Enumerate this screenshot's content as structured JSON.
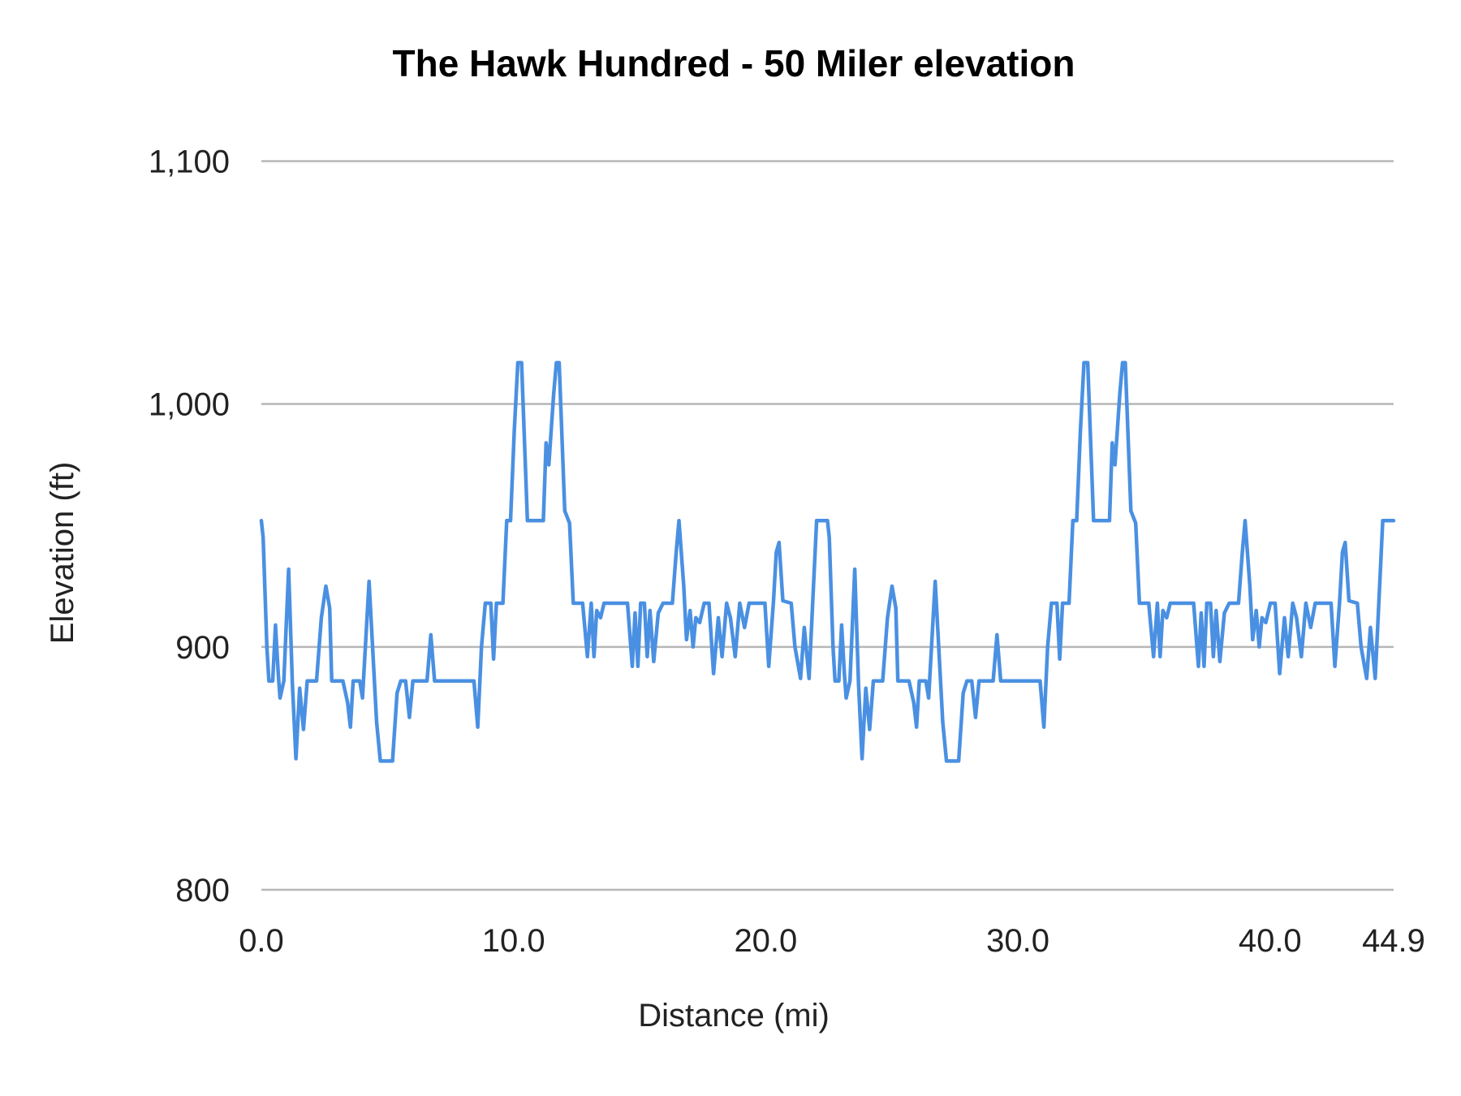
{
  "chart_data": {
    "type": "line",
    "title": "The Hawk Hundred - 50 Miler elevation",
    "xlabel": "Distance (mi)",
    "ylabel": "Elevation (ft)",
    "xlim": [
      0,
      44.9
    ],
    "ylim": [
      800,
      1100
    ],
    "x_ticks": [
      0,
      10,
      20,
      30,
      40,
      44.9
    ],
    "x_tick_labels": [
      "0.0",
      "10.0",
      "20.0",
      "30.0",
      "40.0",
      "44.9"
    ],
    "y_ticks": [
      800,
      900,
      1000,
      1100
    ],
    "y_tick_labels": [
      "800",
      "900",
      "1,000",
      "1,100"
    ],
    "grid": "horizontal",
    "legend": "none",
    "color": "#4a90e2",
    "series": [
      {
        "points": [
          [
            0,
            952
          ],
          [
            0.07,
            945
          ],
          [
            0.22,
            900
          ],
          [
            0.3,
            886
          ],
          [
            0.45,
            886
          ],
          [
            0.56,
            909
          ],
          [
            0.67,
            889
          ],
          [
            0.74,
            879
          ],
          [
            0.89,
            886
          ],
          [
            1.08,
            932
          ],
          [
            1.23,
            885
          ],
          [
            1.37,
            854
          ],
          [
            1.52,
            883
          ],
          [
            1.67,
            866
          ],
          [
            1.82,
            886
          ],
          [
            2.19,
            886
          ],
          [
            2.38,
            912
          ],
          [
            2.56,
            925
          ],
          [
            2.71,
            916
          ],
          [
            2.79,
            886
          ],
          [
            3.23,
            886
          ],
          [
            3.42,
            877
          ],
          [
            3.53,
            867
          ],
          [
            3.64,
            886
          ],
          [
            3.9,
            886
          ],
          [
            4.01,
            879
          ],
          [
            4.27,
            927
          ],
          [
            4.57,
            869
          ],
          [
            4.72,
            853
          ],
          [
            5.2,
            853
          ],
          [
            5.38,
            881
          ],
          [
            5.53,
            886
          ],
          [
            5.72,
            886
          ],
          [
            5.87,
            871
          ],
          [
            6.01,
            886
          ],
          [
            6.57,
            886
          ],
          [
            6.72,
            905
          ],
          [
            6.87,
            886
          ],
          [
            8.43,
            886
          ],
          [
            8.58,
            867
          ],
          [
            8.73,
            900
          ],
          [
            8.88,
            918
          ],
          [
            9.1,
            918
          ],
          [
            9.21,
            895
          ],
          [
            9.32,
            918
          ],
          [
            9.58,
            918
          ],
          [
            9.73,
            952
          ],
          [
            9.88,
            952
          ],
          [
            10.03,
            989
          ],
          [
            10.17,
            1017
          ],
          [
            10.32,
            1017
          ],
          [
            10.55,
            952
          ],
          [
            11.18,
            952
          ],
          [
            11.29,
            984
          ],
          [
            11.4,
            975
          ],
          [
            11.59,
            1004
          ],
          [
            11.7,
            1017
          ],
          [
            11.81,
            1017
          ],
          [
            12.03,
            956
          ],
          [
            12.22,
            951
          ],
          [
            12.37,
            918
          ],
          [
            12.74,
            918
          ],
          [
            12.93,
            896
          ],
          [
            13.08,
            918
          ],
          [
            13.19,
            896
          ],
          [
            13.3,
            915
          ],
          [
            13.45,
            912
          ],
          [
            13.59,
            918
          ],
          [
            14.52,
            918
          ],
          [
            14.71,
            892
          ],
          [
            14.82,
            914
          ],
          [
            14.93,
            892
          ],
          [
            15.04,
            918
          ],
          [
            15.19,
            918
          ],
          [
            15.3,
            896
          ],
          [
            15.41,
            915
          ],
          [
            15.56,
            894
          ],
          [
            15.74,
            914
          ],
          [
            15.93,
            918
          ],
          [
            16.3,
            918
          ],
          [
            16.45,
            939
          ],
          [
            16.56,
            952
          ],
          [
            16.75,
            925
          ],
          [
            16.86,
            903
          ],
          [
            17.0,
            915
          ],
          [
            17.12,
            900
          ],
          [
            17.23,
            912
          ],
          [
            17.38,
            910
          ],
          [
            17.56,
            918
          ],
          [
            17.75,
            918
          ],
          [
            17.93,
            889
          ],
          [
            18.12,
            912
          ],
          [
            18.27,
            896
          ],
          [
            18.45,
            918
          ],
          [
            18.6,
            912
          ],
          [
            18.79,
            896
          ],
          [
            18.97,
            918
          ],
          [
            19.16,
            908
          ],
          [
            19.34,
            918
          ],
          [
            19.97,
            918
          ],
          [
            20.12,
            892
          ],
          [
            20.31,
            919
          ],
          [
            20.42,
            939
          ],
          [
            20.53,
            943
          ],
          [
            20.68,
            919
          ],
          [
            21.01,
            918
          ],
          [
            21.16,
            900
          ],
          [
            21.38,
            887
          ],
          [
            21.53,
            908
          ],
          [
            21.72,
            887
          ],
          [
            22.02,
            952
          ],
          [
            22.45,
            952
          ],
          [
            22.52,
            945
          ],
          [
            22.67,
            900
          ],
          [
            22.75,
            886
          ],
          [
            22.9,
            886
          ],
          [
            23.01,
            909
          ],
          [
            23.12,
            889
          ],
          [
            23.19,
            879
          ],
          [
            23.34,
            886
          ],
          [
            23.53,
            932
          ],
          [
            23.68,
            885
          ],
          [
            23.82,
            854
          ],
          [
            23.97,
            883
          ],
          [
            24.12,
            866
          ],
          [
            24.27,
            886
          ],
          [
            24.64,
            886
          ],
          [
            24.83,
            912
          ],
          [
            25.01,
            925
          ],
          [
            25.16,
            916
          ],
          [
            25.24,
            886
          ],
          [
            25.68,
            886
          ],
          [
            25.87,
            877
          ],
          [
            25.98,
            867
          ],
          [
            26.09,
            886
          ],
          [
            26.35,
            886
          ],
          [
            26.46,
            879
          ],
          [
            26.72,
            927
          ],
          [
            27.02,
            869
          ],
          [
            27.17,
            853
          ],
          [
            27.65,
            853
          ],
          [
            27.83,
            881
          ],
          [
            27.98,
            886
          ],
          [
            28.17,
            886
          ],
          [
            28.32,
            871
          ],
          [
            28.46,
            886
          ],
          [
            29.02,
            886
          ],
          [
            29.17,
            905
          ],
          [
            29.32,
            886
          ],
          [
            30.88,
            886
          ],
          [
            31.03,
            867
          ],
          [
            31.18,
            900
          ],
          [
            31.33,
            918
          ],
          [
            31.55,
            918
          ],
          [
            31.66,
            895
          ],
          [
            31.77,
            918
          ],
          [
            32.03,
            918
          ],
          [
            32.18,
            952
          ],
          [
            32.33,
            952
          ],
          [
            32.48,
            989
          ],
          [
            32.62,
            1017
          ],
          [
            32.77,
            1017
          ],
          [
            33.0,
            952
          ],
          [
            33.63,
            952
          ],
          [
            33.74,
            984
          ],
          [
            33.85,
            975
          ],
          [
            34.04,
            1004
          ],
          [
            34.15,
            1017
          ],
          [
            34.26,
            1017
          ],
          [
            34.48,
            956
          ],
          [
            34.67,
            951
          ],
          [
            34.82,
            918
          ],
          [
            35.19,
            918
          ],
          [
            35.38,
            896
          ],
          [
            35.53,
            918
          ],
          [
            35.64,
            896
          ],
          [
            35.75,
            915
          ],
          [
            35.9,
            912
          ],
          [
            36.04,
            918
          ],
          [
            36.97,
            918
          ],
          [
            37.16,
            892
          ],
          [
            37.27,
            914
          ],
          [
            37.38,
            892
          ],
          [
            37.49,
            918
          ],
          [
            37.64,
            918
          ],
          [
            37.75,
            896
          ],
          [
            37.86,
            915
          ],
          [
            38.01,
            894
          ],
          [
            38.19,
            914
          ],
          [
            38.38,
            918
          ],
          [
            38.75,
            918
          ],
          [
            38.9,
            939
          ],
          [
            39.01,
            952
          ],
          [
            39.2,
            925
          ],
          [
            39.31,
            903
          ],
          [
            39.45,
            915
          ],
          [
            39.57,
            900
          ],
          [
            39.68,
            912
          ],
          [
            39.83,
            910
          ],
          [
            40.01,
            918
          ],
          [
            40.2,
            918
          ],
          [
            40.38,
            889
          ],
          [
            40.57,
            912
          ],
          [
            40.72,
            896
          ],
          [
            40.9,
            918
          ],
          [
            41.05,
            912
          ],
          [
            41.24,
            896
          ],
          [
            41.42,
            918
          ],
          [
            41.61,
            908
          ],
          [
            41.79,
            918
          ],
          [
            42.42,
            918
          ],
          [
            42.57,
            892
          ],
          [
            42.76,
            919
          ],
          [
            42.87,
            939
          ],
          [
            42.98,
            943
          ],
          [
            43.13,
            919
          ],
          [
            43.46,
            918
          ],
          [
            43.61,
            900
          ],
          [
            43.83,
            887
          ],
          [
            43.98,
            908
          ],
          [
            44.17,
            887
          ],
          [
            44.47,
            952
          ],
          [
            44.9,
            952
          ]
        ]
      }
    ]
  }
}
